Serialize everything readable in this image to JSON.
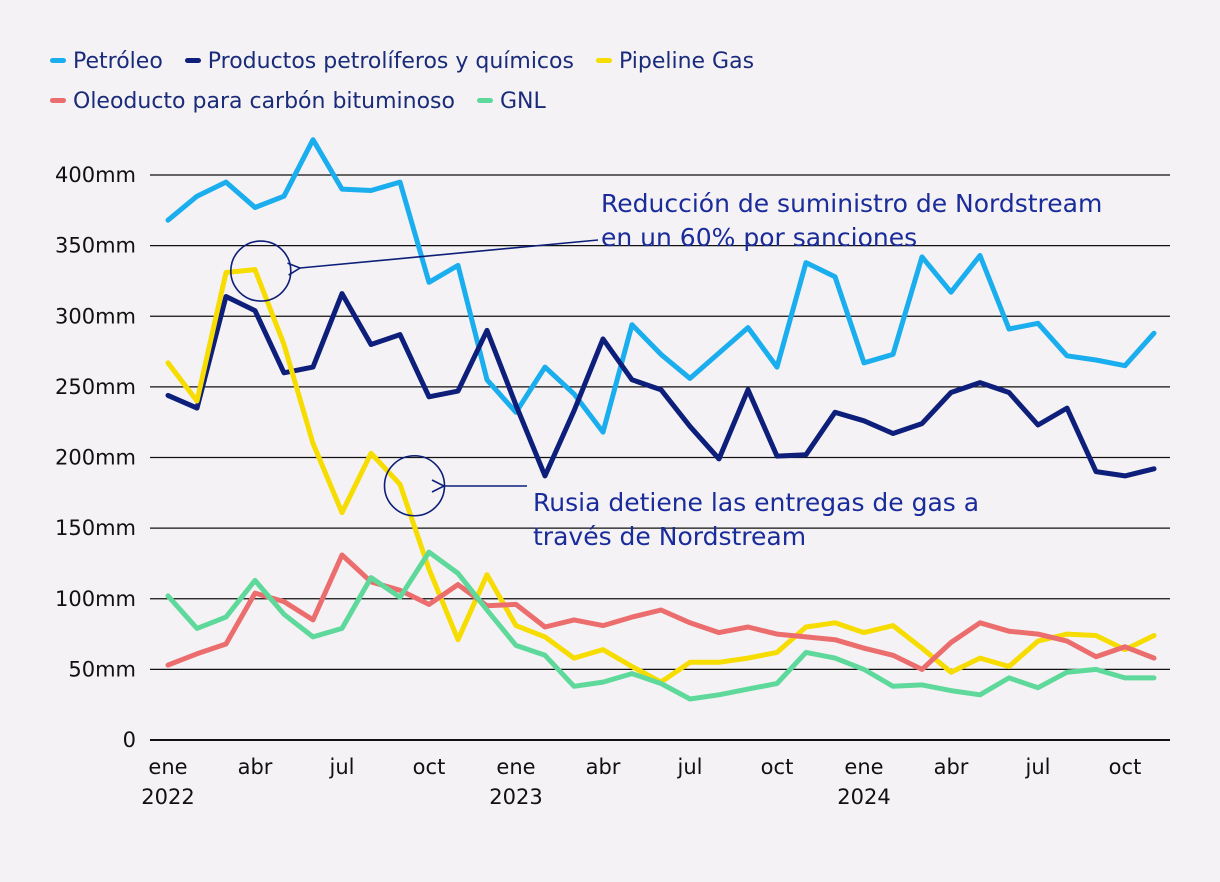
{
  "chart_data": {
    "type": "line",
    "title": "",
    "xlabel": "",
    "ylabel": "",
    "ylim": [
      0,
      400
    ],
    "yticks": [
      0,
      50,
      100,
      150,
      200,
      250,
      300,
      350,
      400
    ],
    "ytick_labels": [
      "0",
      "50mm",
      "100mm",
      "150mm",
      "200mm",
      "250mm",
      "300mm",
      "350mm",
      "400mm"
    ],
    "x_ticks": [
      {
        "index": 0,
        "label": "ene",
        "year": "2022"
      },
      {
        "index": 3,
        "label": "abr",
        "year": ""
      },
      {
        "index": 6,
        "label": "jul",
        "year": ""
      },
      {
        "index": 9,
        "label": "oct",
        "year": ""
      },
      {
        "index": 12,
        "label": "ene",
        "year": "2023"
      },
      {
        "index": 15,
        "label": "abr",
        "year": ""
      },
      {
        "index": 18,
        "label": "jul",
        "year": ""
      },
      {
        "index": 21,
        "label": "oct",
        "year": ""
      },
      {
        "index": 24,
        "label": "ene",
        "year": "2024"
      },
      {
        "index": 27,
        "label": "abr",
        "year": ""
      },
      {
        "index": 30,
        "label": "jul",
        "year": ""
      },
      {
        "index": 33,
        "label": "oct",
        "year": ""
      }
    ],
    "legend_position": "top",
    "grid": true,
    "series": [
      {
        "name": "Petróleo",
        "color": "#1aaeee",
        "values": [
          368,
          385,
          395,
          377,
          385,
          425,
          390,
          389,
          395,
          324,
          336,
          255,
          232,
          264,
          245,
          218,
          294,
          273,
          256,
          274,
          292,
          264,
          338,
          328,
          267,
          273,
          342,
          317,
          343,
          291,
          295,
          272,
          269,
          265,
          288
        ]
      },
      {
        "name": "Productos petrolíferos y químicos",
        "color": "#0d1f7a",
        "values": [
          244,
          235,
          314,
          304,
          260,
          264,
          316,
          280,
          287,
          243,
          247,
          290,
          237,
          187,
          233,
          284,
          255,
          248,
          222,
          199,
          248,
          201,
          202,
          232,
          226,
          217,
          224,
          246,
          253,
          246,
          223,
          235,
          190,
          187,
          192
        ]
      },
      {
        "name": "Pipeline Gas",
        "color": "#f7dc00",
        "values": [
          267,
          240,
          331,
          333,
          280,
          210,
          161,
          203,
          181,
          121,
          71,
          117,
          81,
          73,
          58,
          64,
          52,
          41,
          55,
          55,
          58,
          62,
          80,
          83,
          76,
          81,
          65,
          48,
          58,
          52,
          70,
          75,
          74,
          64,
          74
        ]
      },
      {
        "name": "Oleoducto para carbón bituminoso",
        "color": "#ec6d6d",
        "values": [
          53,
          61,
          68,
          104,
          98,
          85,
          131,
          112,
          106,
          96,
          110,
          95,
          96,
          80,
          85,
          81,
          87,
          92,
          83,
          76,
          80,
          75,
          73,
          71,
          65,
          60,
          50,
          69,
          83,
          77,
          75,
          70,
          59,
          66,
          58
        ]
      },
      {
        "name": "GNL",
        "color": "#5fd99b",
        "values": [
          102,
          79,
          87,
          113,
          89,
          73,
          79,
          115,
          101,
          133,
          118,
          92,
          67,
          60,
          38,
          41,
          47,
          40,
          29,
          32,
          36,
          40,
          62,
          58,
          50,
          38,
          39,
          35,
          32,
          44,
          37,
          48,
          50,
          44,
          44
        ]
      }
    ],
    "annotations": [
      {
        "id": "nordstream-reduction",
        "lines": [
          "Reducción de suministro de Nordstream",
          "en un 60% por sanciones"
        ],
        "target_index": 3.2,
        "target_value": 332
      },
      {
        "id": "nordstream-halt",
        "lines": [
          "Rusia detiene las entregas de gas a",
          "través de Nordstream"
        ],
        "target_index": 8.5,
        "target_value": 180
      }
    ]
  }
}
